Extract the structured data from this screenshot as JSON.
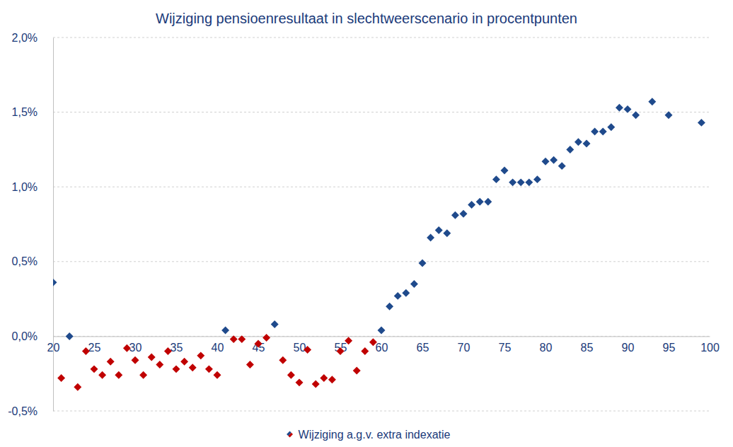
{
  "chart_data": {
    "type": "scatter",
    "title": "Wijziging pensioenresultaat in slechtweerscenario in procentpunten",
    "x": [
      20,
      21,
      22,
      23,
      24,
      25,
      26,
      27,
      28,
      29,
      30,
      31,
      32,
      33,
      34,
      35,
      36,
      37,
      38,
      39,
      40,
      41,
      42,
      43,
      44,
      45,
      46,
      47,
      48,
      49,
      50,
      51,
      52,
      53,
      54,
      55,
      56,
      57,
      58,
      59,
      60,
      61,
      62,
      63,
      64,
      65,
      66,
      67,
      68,
      69,
      70,
      71,
      72,
      73,
      74,
      75,
      76,
      77,
      78,
      79,
      80,
      81,
      82,
      83,
      84,
      85,
      86,
      87,
      88,
      89,
      90,
      91,
      93,
      95,
      99
    ],
    "series": [
      {
        "name": "Wijziging a.g.v. extra indexatie",
        "marker": "diamond",
        "values": [
          0.36,
          -0.28,
          0.0,
          -0.34,
          -0.1,
          -0.22,
          -0.26,
          -0.17,
          -0.26,
          -0.08,
          -0.16,
          -0.26,
          -0.14,
          -0.19,
          -0.1,
          -0.22,
          -0.17,
          -0.21,
          -0.13,
          -0.22,
          -0.26,
          0.04,
          -0.02,
          -0.02,
          -0.19,
          -0.05,
          -0.01,
          0.08,
          -0.16,
          -0.26,
          -0.31,
          -0.09,
          -0.32,
          -0.28,
          -0.29,
          -0.1,
          -0.03,
          -0.23,
          -0.1,
          -0.04,
          0.04,
          0.2,
          0.27,
          0.29,
          0.35,
          0.49,
          0.66,
          0.71,
          0.69,
          0.81,
          0.82,
          0.88,
          0.9,
          0.9,
          1.05,
          1.11,
          1.03,
          1.03,
          1.03,
          1.05,
          1.17,
          1.18,
          1.14,
          1.25,
          1.3,
          1.29,
          1.37,
          1.37,
          1.4,
          1.53,
          1.52,
          1.48,
          1.57,
          1.48,
          1.43
        ],
        "colors": [
          "#1f4a8c",
          "#c00000",
          "#1f4a8c",
          "#c00000",
          "#c00000",
          "#c00000",
          "#c00000",
          "#c00000",
          "#c00000",
          "#c00000",
          "#c00000",
          "#c00000",
          "#c00000",
          "#c00000",
          "#c00000",
          "#c00000",
          "#c00000",
          "#c00000",
          "#c00000",
          "#c00000",
          "#c00000",
          "#1f4a8c",
          "#c00000",
          "#c00000",
          "#c00000",
          "#c00000",
          "#c00000",
          "#1f4a8c",
          "#c00000",
          "#c00000",
          "#c00000",
          "#c00000",
          "#c00000",
          "#c00000",
          "#c00000",
          "#c00000",
          "#c00000",
          "#c00000",
          "#c00000",
          "#c00000",
          "#1f4a8c",
          "#1f4a8c",
          "#1f4a8c",
          "#1f4a8c",
          "#1f4a8c",
          "#1f4a8c",
          "#1f4a8c",
          "#1f4a8c",
          "#1f4a8c",
          "#1f4a8c",
          "#1f4a8c",
          "#1f4a8c",
          "#1f4a8c",
          "#1f4a8c",
          "#1f4a8c",
          "#1f4a8c",
          "#1f4a8c",
          "#1f4a8c",
          "#1f4a8c",
          "#1f4a8c",
          "#1f4a8c",
          "#1f4a8c",
          "#1f4a8c",
          "#1f4a8c",
          "#1f4a8c",
          "#1f4a8c",
          "#1f4a8c",
          "#1f4a8c",
          "#1f4a8c",
          "#1f4a8c",
          "#1f4a8c",
          "#1f4a8c",
          "#1f4a8c",
          "#1f4a8c",
          "#1f4a8c"
        ]
      }
    ],
    "xlim": [
      20,
      100
    ],
    "xticks": [
      20,
      25,
      30,
      35,
      40,
      45,
      50,
      55,
      60,
      65,
      70,
      75,
      80,
      85,
      90,
      95,
      100
    ],
    "ylim": [
      -0.5,
      2.0
    ],
    "yticks": [
      {
        "value": -0.5,
        "label": "-0,5%"
      },
      {
        "value": 0,
        "label": "0,0%"
      },
      {
        "value": 0.5,
        "label": "0,5%"
      },
      {
        "value": 1.0,
        "label": "1,0%"
      },
      {
        "value": 1.5,
        "label": "1,5%"
      },
      {
        "value": 2.0,
        "label": "2,0%"
      }
    ],
    "grid": true,
    "legend": "bottom"
  }
}
